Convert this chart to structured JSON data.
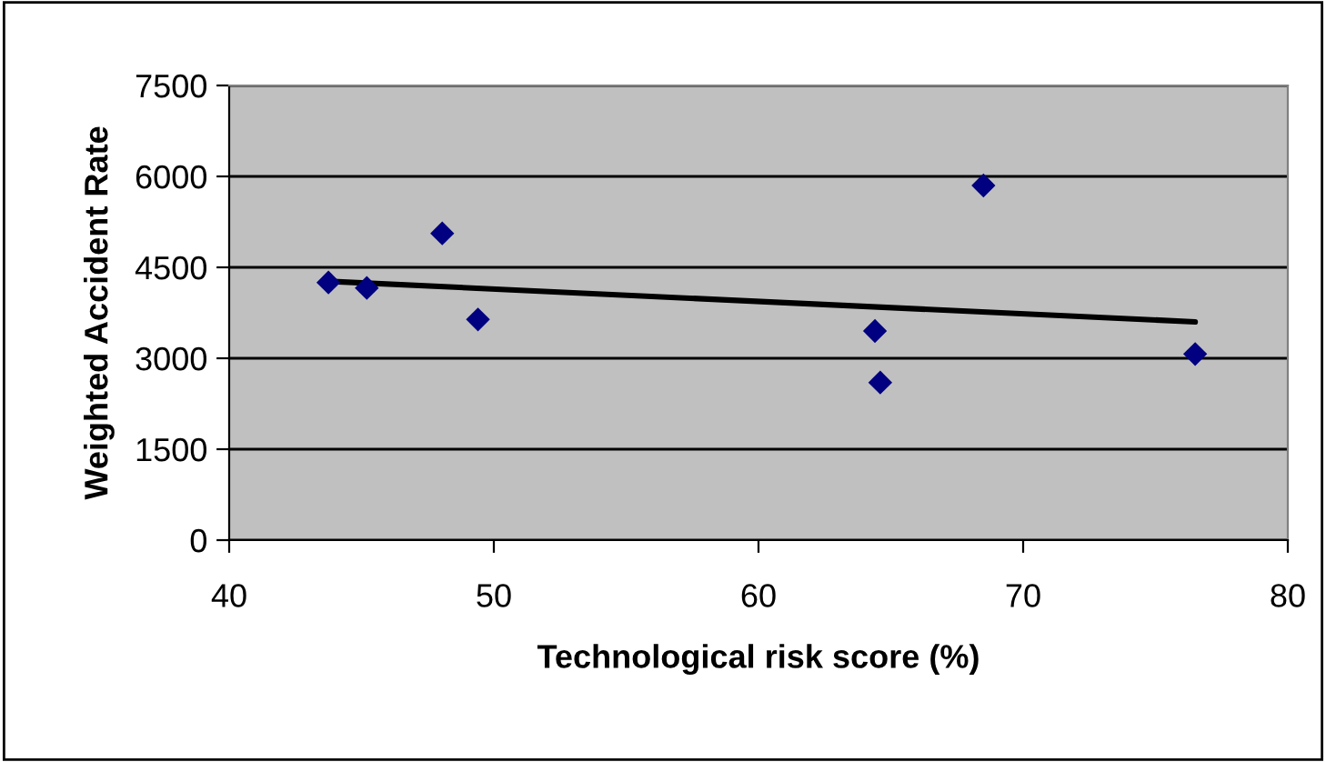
{
  "chart_data": {
    "type": "scatter",
    "xlabel": "Technological risk score (%)",
    "ylabel": "Weighted Accident Rate",
    "series": [
      {
        "color": "#000080",
        "marker": "diamond",
        "x": [
          43.75,
          45.2,
          48.05,
          49.4,
          64.4,
          64.6,
          68.5,
          76.5
        ],
        "values": [
          4250,
          4160,
          5060,
          3640,
          3450,
          2600,
          5850,
          3070
        ]
      },
      {
        "type": "line",
        "color": "#000000",
        "marker": "none",
        "line_style": "solid",
        "x": [
          43.75,
          76.5
        ],
        "values": [
          4270,
          3600
        ]
      }
    ],
    "xlim": [
      40,
      80
    ],
    "xticks": [
      40,
      50,
      60,
      70,
      80
    ],
    "ylim": [
      0,
      7500
    ],
    "yticks": [
      0,
      1500,
      3000,
      4500,
      6000,
      7500
    ],
    "grid": "y",
    "legend": false
  }
}
